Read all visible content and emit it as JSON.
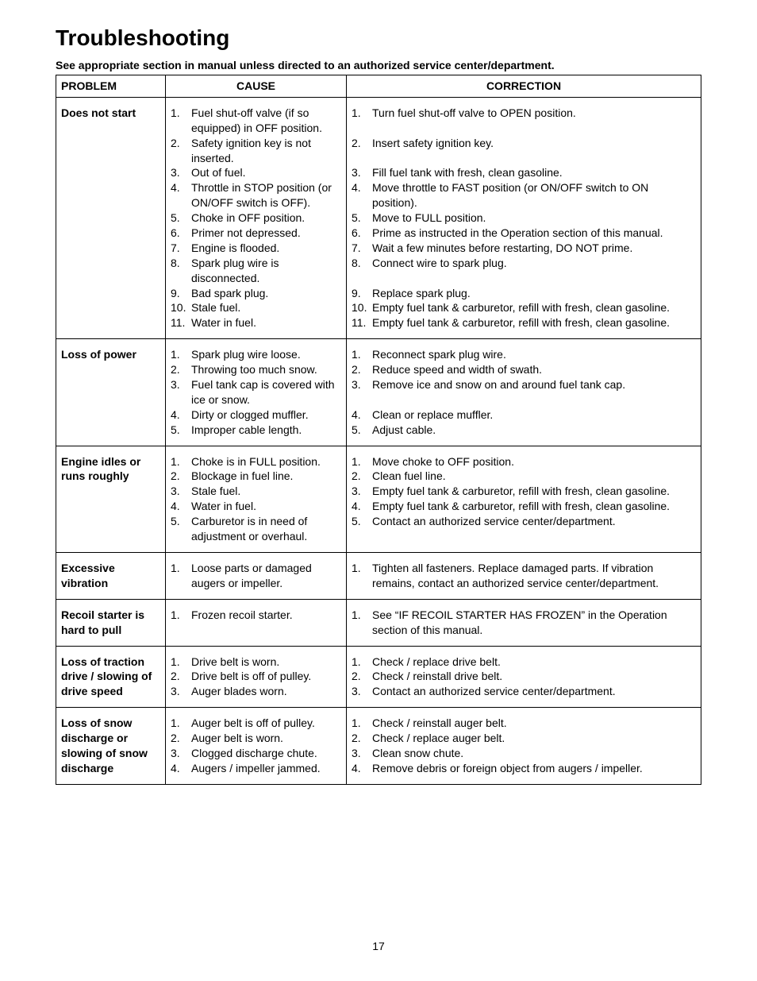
{
  "title": "Troubleshooting",
  "subhead": "See appropriate section in manual unless directed to an authorized service center/department.",
  "headers": {
    "problem": "PROBLEM",
    "cause": "CAUSE",
    "correction": "CORRECTION"
  },
  "page_number": "17",
  "rows": [
    {
      "problem": "Does not start",
      "causes": [
        "Fuel shut-off valve (if so equipped) in OFF position.",
        "Safety ignition key is not inserted.",
        "Out of fuel.",
        "Throttle in STOP position (or ON/OFF switch is OFF).",
        "Choke in OFF position.",
        "Primer not depressed.",
        "Engine is flooded.",
        "Spark plug wire is disconnected.",
        "Bad spark plug.",
        "Stale fuel.",
        "Water in fuel."
      ],
      "corrections": [
        "Turn fuel shut-off valve to OPEN position.\n ",
        "Insert safety ignition key.\n ",
        "Fill fuel tank with fresh, clean gasoline.",
        "Move throttle to FAST position (or ON/OFF switch to ON position).",
        "Move to FULL position.",
        "Prime as instructed in the Operation section of this manual.",
        "Wait a few minutes before restarting, DO NOT prime.",
        "Connect wire to spark plug.\n ",
        "Replace spark plug.",
        "Empty fuel tank & carburetor, refill with fresh, clean gasoline.",
        "Empty fuel tank & carburetor, refill with fresh, clean gasoline."
      ]
    },
    {
      "problem": "Loss of power",
      "causes": [
        "Spark plug wire loose.",
        "Throwing too much snow.",
        "Fuel tank cap is covered with ice or snow.",
        "Dirty or clogged muffler.",
        "Improper cable length."
      ],
      "corrections": [
        "Reconnect spark plug wire.",
        "Reduce speed and width of swath.",
        "Remove ice and snow on and around fuel tank cap.\n ",
        "Clean or replace muffler.",
        "Adjust cable."
      ]
    },
    {
      "problem": "Engine idles or runs roughly",
      "causes": [
        "Choke is in FULL position.",
        "Blockage in fuel line.",
        "Stale fuel.",
        "Water in fuel.",
        "Carburetor is in need of adjustment or overhaul."
      ],
      "corrections": [
        "Move choke to OFF position.",
        "Clean fuel line.",
        "Empty fuel tank & carburetor, refill with fresh, clean gasoline.",
        "Empty fuel tank & carburetor, refill with fresh, clean gasoline.",
        "Contact an authorized service center/department."
      ]
    },
    {
      "problem": "Excessive vibration",
      "causes": [
        "Loose parts or damaged augers or impeller."
      ],
      "corrections": [
        "Tighten all fasteners.  Replace damaged parts.  If vibration remains, contact an authorized service center/department."
      ]
    },
    {
      "problem": "Recoil starter is hard to pull",
      "causes": [
        "Frozen recoil starter."
      ],
      "corrections": [
        "See “IF RECOIL STARTER HAS FROZEN” in the Operation section of this manual."
      ]
    },
    {
      "problem": "Loss of traction drive / slowing of drive speed",
      "causes": [
        "Drive belt is worn.",
        "Drive belt is off of pulley.",
        "Auger blades worn."
      ],
      "corrections": [
        "Check / replace drive belt.",
        "Check / reinstall drive belt.",
        "Contact an authorized service center/department."
      ]
    },
    {
      "problem": "Loss of snow discharge or slowing of snow discharge",
      "causes": [
        "Auger belt is off of pulley.",
        "Auger belt is worn.",
        "Clogged discharge chute.",
        "Augers / impeller jammed."
      ],
      "corrections": [
        "Check / reinstall auger belt.",
        "Check / replace auger belt.",
        "Clean snow chute.",
        "Remove debris or foreign object from augers / impeller."
      ]
    }
  ]
}
